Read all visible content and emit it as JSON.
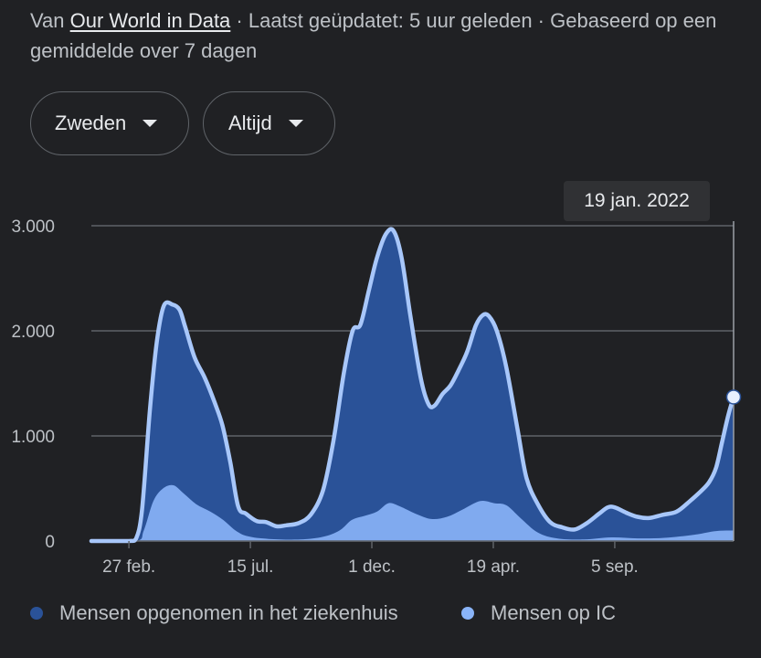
{
  "header": {
    "prefix": "Van",
    "source_link": "Our World in Data",
    "suffix": "· Laatst geüpdatet: 5 uur geleden · Gebaseerd op een gemiddelde over 7 dagen"
  },
  "filters": {
    "country": "Zweden",
    "range": "Altijd"
  },
  "tooltip": {
    "date": "19 jan. 2022"
  },
  "colors": {
    "hospital_fill": "#2a5298",
    "hospital_line": "#a8c7fa",
    "ic_fill": "#8ab4f8",
    "grid": "#5f6368",
    "background": "#202124"
  },
  "chart_data": {
    "type": "area",
    "title": "",
    "xlabel": "",
    "ylabel": "",
    "ylim": [
      0,
      3000
    ],
    "yticks": [
      0,
      1000,
      2000,
      3000
    ],
    "ytick_labels": [
      "0",
      "1.000",
      "2.000",
      "3.000"
    ],
    "xticks": [
      "2020-02-27",
      "2020-07-15",
      "2020-12-01",
      "2021-04-19",
      "2021-09-05"
    ],
    "xtick_labels": [
      "27 feb.",
      "15 jul.",
      "1 dec.",
      "19 apr.",
      "5 sep."
    ],
    "xlim": [
      "2020-01-15",
      "2022-01-19"
    ],
    "legend_position": "bottom",
    "grid": true,
    "series": [
      {
        "name": "Mensen opgenomen in het ziekenhuis",
        "color": "#2a5298",
        "points": [
          [
            "2020-01-15",
            0
          ],
          [
            "2020-02-27",
            0
          ],
          [
            "2020-03-06",
            20
          ],
          [
            "2020-03-13",
            300
          ],
          [
            "2020-03-22",
            1250
          ],
          [
            "2020-03-30",
            1900
          ],
          [
            "2020-04-07",
            2240
          ],
          [
            "2020-04-17",
            2250
          ],
          [
            "2020-04-25",
            2200
          ],
          [
            "2020-05-01",
            2050
          ],
          [
            "2020-05-12",
            1750
          ],
          [
            "2020-05-24",
            1550
          ],
          [
            "2020-06-04",
            1320
          ],
          [
            "2020-06-13",
            1100
          ],
          [
            "2020-06-22",
            750
          ],
          [
            "2020-07-01",
            330
          ],
          [
            "2020-07-10",
            260
          ],
          [
            "2020-07-22",
            190
          ],
          [
            "2020-08-02",
            180
          ],
          [
            "2020-08-14",
            140
          ],
          [
            "2020-08-25",
            150
          ],
          [
            "2020-09-08",
            170
          ],
          [
            "2020-09-22",
            250
          ],
          [
            "2020-10-06",
            480
          ],
          [
            "2020-10-18",
            950
          ],
          [
            "2020-10-30",
            1600
          ],
          [
            "2020-11-09",
            2000
          ],
          [
            "2020-11-18",
            2060
          ],
          [
            "2020-11-28",
            2400
          ],
          [
            "2020-12-07",
            2700
          ],
          [
            "2020-12-17",
            2920
          ],
          [
            "2020-12-26",
            2950
          ],
          [
            "2021-01-04",
            2700
          ],
          [
            "2021-01-14",
            2150
          ],
          [
            "2021-01-26",
            1550
          ],
          [
            "2021-02-04",
            1300
          ],
          [
            "2021-02-11",
            1290
          ],
          [
            "2021-02-20",
            1400
          ],
          [
            "2021-03-01",
            1480
          ],
          [
            "2021-03-10",
            1620
          ],
          [
            "2021-03-20",
            1800
          ],
          [
            "2021-03-30",
            2050
          ],
          [
            "2021-04-07",
            2150
          ],
          [
            "2021-04-14",
            2140
          ],
          [
            "2021-04-23",
            2000
          ],
          [
            "2021-05-04",
            1650
          ],
          [
            "2021-05-17",
            1050
          ],
          [
            "2021-05-27",
            600
          ],
          [
            "2021-06-09",
            350
          ],
          [
            "2021-06-23",
            180
          ],
          [
            "2021-07-07",
            130
          ],
          [
            "2021-07-21",
            110
          ],
          [
            "2021-08-04",
            170
          ],
          [
            "2021-08-18",
            260
          ],
          [
            "2021-08-28",
            320
          ],
          [
            "2021-09-05",
            320
          ],
          [
            "2021-09-18",
            270
          ],
          [
            "2021-10-01",
            230
          ],
          [
            "2021-10-15",
            220
          ],
          [
            "2021-10-30",
            250
          ],
          [
            "2021-11-15",
            280
          ],
          [
            "2021-11-30",
            380
          ],
          [
            "2021-12-12",
            470
          ],
          [
            "2021-12-22",
            560
          ],
          [
            "2021-12-30",
            700
          ],
          [
            "2022-01-06",
            950
          ],
          [
            "2022-01-13",
            1200
          ],
          [
            "2022-01-19",
            1370
          ]
        ]
      },
      {
        "name": "Mensen op IC",
        "color": "#8ab4f8",
        "points": [
          [
            "2020-01-15",
            0
          ],
          [
            "2020-03-06",
            0
          ],
          [
            "2020-03-15",
            100
          ],
          [
            "2020-03-26",
            380
          ],
          [
            "2020-04-06",
            500
          ],
          [
            "2020-04-18",
            530
          ],
          [
            "2020-04-30",
            450
          ],
          [
            "2020-05-14",
            350
          ],
          [
            "2020-05-30",
            280
          ],
          [
            "2020-06-14",
            200
          ],
          [
            "2020-06-28",
            100
          ],
          [
            "2020-07-12",
            45
          ],
          [
            "2020-08-05",
            20
          ],
          [
            "2020-09-10",
            15
          ],
          [
            "2020-10-06",
            40
          ],
          [
            "2020-10-25",
            100
          ],
          [
            "2020-11-08",
            200
          ],
          [
            "2020-11-23",
            240
          ],
          [
            "2020-12-07",
            280
          ],
          [
            "2020-12-20",
            360
          ],
          [
            "2021-01-02",
            330
          ],
          [
            "2021-01-20",
            260
          ],
          [
            "2021-02-07",
            210
          ],
          [
            "2021-02-25",
            230
          ],
          [
            "2021-03-15",
            300
          ],
          [
            "2021-04-04",
            380
          ],
          [
            "2021-04-20",
            360
          ],
          [
            "2021-05-04",
            340
          ],
          [
            "2021-05-20",
            220
          ],
          [
            "2021-06-09",
            80
          ],
          [
            "2021-07-01",
            25
          ],
          [
            "2021-08-01",
            15
          ],
          [
            "2021-09-01",
            35
          ],
          [
            "2021-10-01",
            25
          ],
          [
            "2021-11-01",
            30
          ],
          [
            "2021-12-05",
            60
          ],
          [
            "2021-12-30",
            95
          ],
          [
            "2022-01-19",
            100
          ]
        ]
      }
    ]
  }
}
